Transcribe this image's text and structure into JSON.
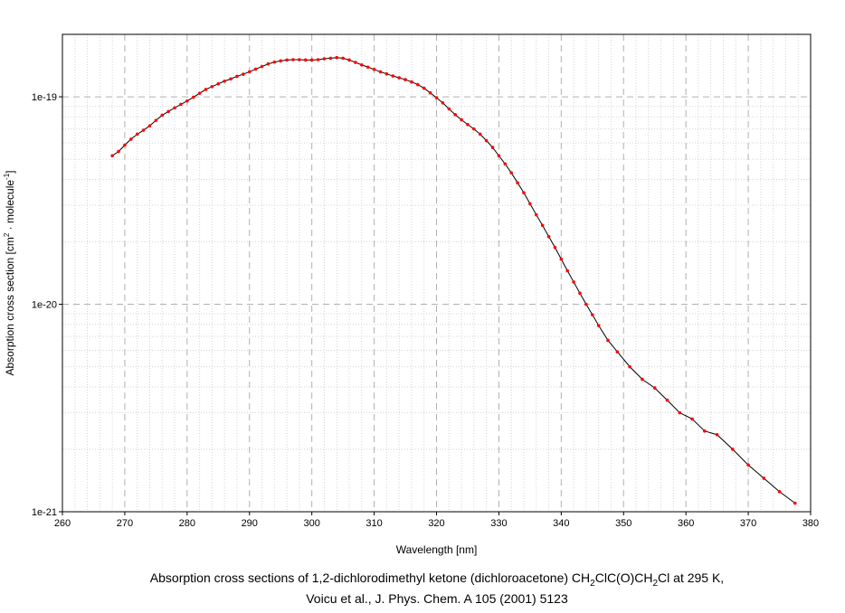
{
  "chart_data": {
    "type": "line",
    "xlabel": "Wavelength [nm]",
    "ylabel_parts": {
      "prefix": "Absorption cross section [cm",
      "sup1": "2",
      "middle": " · molecule",
      "sup2": "-1",
      "suffix": "]"
    },
    "caption": {
      "line1_parts": [
        {
          "text": "Absorption cross sections of 1,2-dichlorodimethyl ketone (dichloroacetone) CH",
          "sub": false
        },
        {
          "text": "2",
          "sub": true
        },
        {
          "text": "ClC(O)CH",
          "sub": false
        },
        {
          "text": "2",
          "sub": true
        },
        {
          "text": "Cl at 295 K,",
          "sub": false
        }
      ],
      "line2": "Voicu et al., J. Phys. Chem. A 105 (2001) 5123"
    },
    "xlim": [
      260,
      380
    ],
    "ylim": [
      1e-21,
      2e-19
    ],
    "yscale": "log",
    "grid": true,
    "x_ticks": [
      260,
      270,
      280,
      290,
      300,
      310,
      320,
      330,
      340,
      350,
      360,
      370,
      380
    ],
    "x_tick_labels": [
      "260",
      "270",
      "280",
      "290",
      "300",
      "310",
      "320",
      "330",
      "340",
      "350",
      "360",
      "370",
      "380"
    ],
    "y_ticks": [
      1e-21,
      1e-20,
      1e-19
    ],
    "y_tick_labels": [
      "1e-21",
      "1e-20",
      "1e-19"
    ],
    "line_color": "#000000",
    "marker_color": "#ff0000",
    "series": [
      {
        "x": [
          268.0,
          269.0,
          270.0,
          271.0,
          272.0,
          273.0,
          274.0,
          275.0,
          276.0,
          277.0,
          278.0,
          279.0,
          280.0,
          281.0,
          282.0,
          283.0,
          284.0,
          285.0,
          286.0,
          287.0,
          288.0,
          289.0,
          290.0,
          291.0,
          292.0,
          293.0,
          294.0,
          295.0,
          296.0,
          297.0,
          298.0,
          299.0,
          300.0,
          301.0,
          302.0,
          303.0,
          304.0,
          305.0,
          306.0,
          307.0,
          308.0,
          309.0,
          310.0,
          311.0,
          312.0,
          313.0,
          314.0,
          315.0,
          316.0,
          317.0,
          318.0,
          319.0,
          320.0,
          321.0,
          322.0,
          323.0,
          324.0,
          325.0,
          326.0,
          327.0,
          328.0,
          329.0,
          330.0,
          331.0,
          332.0,
          333.0,
          334.0,
          335.0,
          336.0,
          337.0,
          338.0,
          339.0,
          340.0,
          341.0,
          342.0,
          343.0,
          344.0,
          345.0,
          346.0,
          347.5,
          349.0,
          351.0,
          353.0,
          355.0,
          357.0,
          359.0,
          361.0,
          363.0,
          365.0,
          367.5,
          370.0,
          372.5,
          375.0,
          377.5
        ],
        "y": [
          5.2e-20,
          5.45e-20,
          5.85e-20,
          6.25e-20,
          6.6e-20,
          6.9e-20,
          7.25e-20,
          7.7e-20,
          8.15e-20,
          8.5e-20,
          8.85e-20,
          9.2e-20,
          9.55e-20,
          9.95e-20,
          1.04e-19,
          1.085e-19,
          1.12e-19,
          1.155e-19,
          1.19e-19,
          1.22e-19,
          1.255e-19,
          1.285e-19,
          1.32e-19,
          1.36e-19,
          1.4e-19,
          1.44e-19,
          1.47e-19,
          1.49e-19,
          1.505e-19,
          1.51e-19,
          1.51e-19,
          1.505e-19,
          1.505e-19,
          1.51e-19,
          1.525e-19,
          1.535e-19,
          1.545e-19,
          1.535e-19,
          1.505e-19,
          1.465e-19,
          1.425e-19,
          1.39e-19,
          1.355e-19,
          1.32e-19,
          1.29e-19,
          1.26e-19,
          1.235e-19,
          1.21e-19,
          1.18e-19,
          1.145e-19,
          1.1e-19,
          1.045e-19,
          9.9e-20,
          9.35e-20,
          8.75e-20,
          8.2e-20,
          7.75e-20,
          7.35e-20,
          7e-20,
          6.6e-20,
          6.15e-20,
          5.7e-20,
          5.2e-20,
          4.75e-20,
          4.3e-20,
          3.85e-20,
          3.45e-20,
          3.05e-20,
          2.7e-20,
          2.4e-20,
          2.12e-20,
          1.88e-20,
          1.65e-20,
          1.45e-20,
          1.28e-20,
          1.13e-20,
          1e-20,
          8.9e-21,
          7.9e-21,
          6.7e-21,
          5.9e-21,
          5e-21,
          4.35e-21,
          3.95e-21,
          3.45e-21,
          3e-21,
          2.8e-21,
          2.45e-21,
          2.35e-21,
          2e-21,
          1.68e-21,
          1.45e-21,
          1.25e-21,
          1.1e-21
        ],
        "markers": [
          268.0,
          269.0,
          270.0,
          271.0,
          272.0,
          273.0,
          274.0,
          275.0,
          276.0,
          277.0,
          278.0,
          279.0,
          280.0,
          281.0,
          282.0,
          283.0,
          284.0,
          285.0,
          286.0,
          287.0,
          288.0,
          289.0,
          290.0,
          291.0,
          292.0,
          293.0,
          294.0,
          295.0,
          296.0,
          297.0,
          298.0,
          299.0,
          300.0,
          301.0,
          302.0,
          303.0,
          304.0,
          305.0,
          306.0,
          307.0,
          308.0,
          309.0,
          310.0,
          311.0,
          312.0,
          313.0,
          314.0,
          315.0,
          316.0,
          317.0,
          318.0,
          319.0,
          320.0,
          321.0,
          322.0,
          323.0,
          324.0,
          325.0,
          326.0,
          327.0,
          328.0,
          329.0,
          330.0,
          331.0,
          332.0,
          333.0,
          334.0,
          335.0,
          336.0,
          337.0,
          338.0,
          339.0,
          340.0,
          341.0,
          342.0,
          343.0,
          344.0,
          345.0,
          346.0,
          347.5,
          349.0,
          351.0,
          353.0,
          355.0,
          357.0,
          359.0,
          361.0,
          363.0,
          365.0,
          367.5,
          370.0,
          372.5,
          375.0,
          377.5
        ]
      }
    ]
  }
}
